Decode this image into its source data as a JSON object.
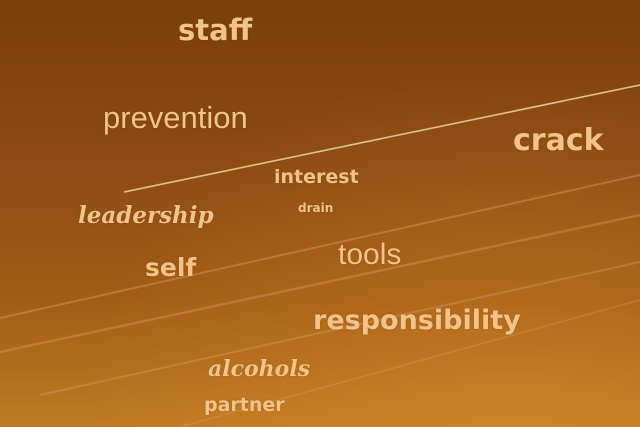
{
  "word_cloud": {
    "words": [
      {
        "key": "staff",
        "text": "staff"
      },
      {
        "key": "prevention",
        "text": "prevention"
      },
      {
        "key": "crack",
        "text": "crack"
      },
      {
        "key": "interest",
        "text": "interest"
      },
      {
        "key": "drain",
        "text": "drain"
      },
      {
        "key": "leadership",
        "text": "leadership"
      },
      {
        "key": "tools",
        "text": "tools"
      },
      {
        "key": "self",
        "text": "self"
      },
      {
        "key": "responsibility",
        "text": "responsibility"
      },
      {
        "key": "alcohols",
        "text": "alcohols"
      },
      {
        "key": "partner",
        "text": "partner"
      }
    ],
    "text_color": "#f2c48a",
    "background_color": "#8a4a12"
  }
}
